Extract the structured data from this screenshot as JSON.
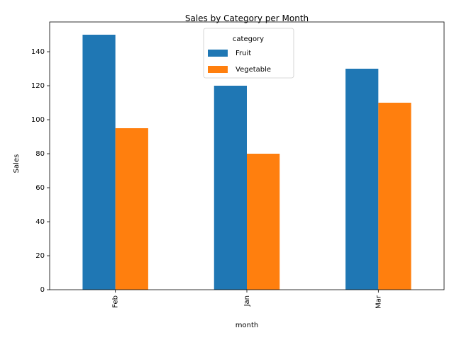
{
  "chart_data": {
    "type": "bar",
    "title": "Sales by Category per Month",
    "xlabel": "month",
    "ylabel": "Sales",
    "categories": [
      "Feb",
      "Jan",
      "Mar"
    ],
    "series": [
      {
        "name": "Fruit",
        "color": "#1f77b4",
        "values": [
          150,
          120,
          130
        ]
      },
      {
        "name": "Vegetable",
        "color": "#ff7f0e",
        "values": [
          95,
          80,
          110
        ]
      }
    ],
    "ylim": [
      0,
      157.5
    ],
    "yticks": [
      "0",
      "20",
      "40",
      "60",
      "80",
      "100",
      "120",
      "140"
    ],
    "legend": {
      "title": "category",
      "position": "top-center"
    },
    "grid": false
  }
}
